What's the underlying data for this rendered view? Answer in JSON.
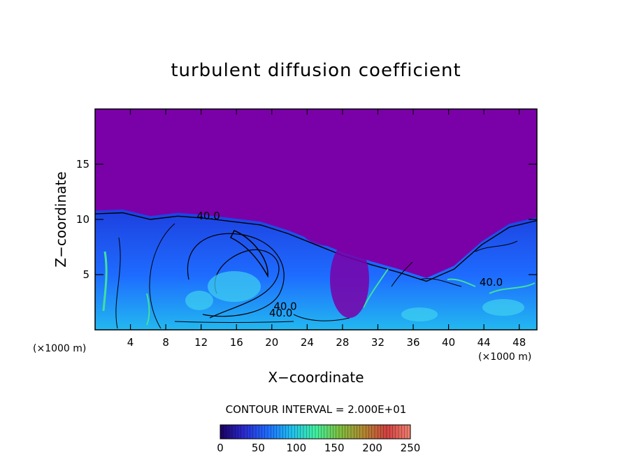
{
  "chart_data": {
    "type": "heatmap",
    "title": "turbulent diffusion coefficient",
    "xlabel": "X−coordinate",
    "ylabel": "Z−coordinate",
    "x_unit_left": "(×1000 m)",
    "x_unit_right": "(×1000 m)",
    "xlim": [
      0,
      50
    ],
    "ylim": [
      0,
      20
    ],
    "x_ticks": [
      4,
      8,
      12,
      16,
      20,
      24,
      28,
      32,
      36,
      40,
      44,
      48
    ],
    "y_ticks": [
      5,
      10,
      15
    ],
    "contour_labels": [
      {
        "text": "40.0",
        "x": 11.5,
        "z": 10.0
      },
      {
        "text": "40.0",
        "x": 19.7,
        "z": 1.2
      },
      {
        "text": "40.0",
        "x": 43.5,
        "z": 4.0
      },
      {
        "text": "40.0",
        "x": 20.2,
        "z": 1.8
      }
    ],
    "contour_interval": "CONTOUR INTERVAL = 2.000E+01",
    "colorbar": {
      "min": 0,
      "max": 250,
      "ticks": [
        0,
        50,
        100,
        150,
        200,
        250
      ],
      "colors": [
        "#1a0060",
        "#2a2ad0",
        "#1e6cff",
        "#1fc0ee",
        "#40f0a0",
        "#7cc040",
        "#b08a30",
        "#d04040",
        "#f08070"
      ]
    },
    "background_color": "#7a00a8",
    "turbulent_layer_top_z": [
      10.8,
      10.9,
      10.3,
      10.6,
      10.4,
      10.1,
      9.8,
      9.0,
      8.0,
      7.0,
      6.2,
      5.5,
      4.7,
      5.8,
      8.0,
      9.6,
      10.2
    ]
  }
}
